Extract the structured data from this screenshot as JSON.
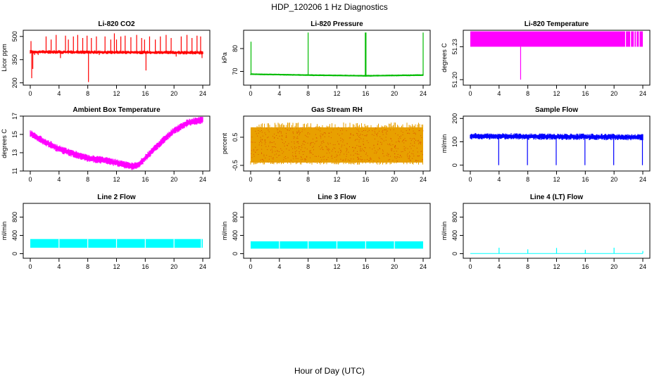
{
  "figure": {
    "title": "HDP_120206  1 Hz Diagnostics",
    "xlabel": "Hour of Day (UTC)"
  },
  "chart_data": [
    {
      "type": "line",
      "title": "Li-820 CO2",
      "ylabel": "Licor ppm",
      "xlim": [
        0,
        24
      ],
      "ylim": [
        185,
        540
      ],
      "xticks": [
        "0",
        "4",
        "8",
        "12",
        "16",
        "20",
        "24"
      ],
      "yticks": [
        "200",
        "350",
        "500"
      ],
      "ytick_values": [
        200,
        350,
        500
      ],
      "color": "#ff0000",
      "baseline": [
        [
          0,
          400
        ],
        [
          24,
          395
        ]
      ],
      "band": 12,
      "spikes": [
        [
          0.1,
          470
        ],
        [
          0.2,
          230
        ],
        [
          0.35,
          290
        ],
        [
          0.6,
          380
        ],
        [
          1.1,
          380
        ],
        [
          2.2,
          500
        ],
        [
          2.9,
          480
        ],
        [
          3.6,
          510
        ],
        [
          4.2,
          360
        ],
        [
          4.9,
          505
        ],
        [
          5.3,
          480
        ],
        [
          6.0,
          500
        ],
        [
          6.6,
          510
        ],
        [
          7.3,
          490
        ],
        [
          7.9,
          505
        ],
        [
          8.1,
          205
        ],
        [
          8.5,
          490
        ],
        [
          9.2,
          500
        ],
        [
          9.6,
          380
        ],
        [
          10.4,
          500
        ],
        [
          11.2,
          480
        ],
        [
          11.7,
          520
        ],
        [
          12.0,
          480
        ],
        [
          12.6,
          500
        ],
        [
          13.2,
          505
        ],
        [
          14.0,
          495
        ],
        [
          14.8,
          510
        ],
        [
          15.5,
          490
        ],
        [
          15.9,
          480
        ],
        [
          16.1,
          280
        ],
        [
          16.6,
          500
        ],
        [
          17.4,
          480
        ],
        [
          18.1,
          500
        ],
        [
          18.9,
          510
        ],
        [
          19.6,
          490
        ],
        [
          20.3,
          370
        ],
        [
          21.0,
          500
        ],
        [
          21.8,
          510
        ],
        [
          22.5,
          490
        ],
        [
          23.2,
          505
        ],
        [
          23.7,
          500
        ],
        [
          23.9,
          360
        ]
      ]
    },
    {
      "type": "line",
      "title": "Li-820 Pressure",
      "ylabel": "kPa",
      "xlim": [
        0,
        24
      ],
      "ylim": [
        64,
        88
      ],
      "xticks": [
        "0",
        "4",
        "8",
        "12",
        "16",
        "20",
        "24"
      ],
      "yticks": [
        "70",
        "80"
      ],
      "ytick_values": [
        70,
        80
      ],
      "color": "#00bb00",
      "baseline": [
        [
          0,
          68.8
        ],
        [
          8,
          68.4
        ],
        [
          16,
          68.1
        ],
        [
          24,
          68.4
        ]
      ],
      "band": 0.4,
      "spikes": [
        [
          0.05,
          83
        ],
        [
          8.0,
          87
        ],
        [
          15.95,
          87
        ],
        [
          16.05,
          87
        ],
        [
          24.0,
          87
        ]
      ]
    },
    {
      "type": "area",
      "title": "Li-820 Temperature",
      "ylabel": "degrees C",
      "xlim": [
        0,
        24
      ],
      "ylim": [
        51.195,
        51.245
      ],
      "xticks": [
        "0",
        "4",
        "8",
        "12",
        "16",
        "20",
        "24"
      ],
      "yticks": [
        "51.20",
        "51.23"
      ],
      "ytick_values": [
        51.2,
        51.23
      ],
      "color": "#ff00ff",
      "band_low": 51.23,
      "band_high": 51.244,
      "gaps": [
        21.6,
        22.3,
        22.8,
        23.1,
        23.5
      ],
      "spikes": [
        [
          7.0,
          51.2
        ]
      ]
    },
    {
      "type": "line",
      "title": "Ambient Box Temperature",
      "ylabel": "degrees C",
      "xlim": [
        0,
        24
      ],
      "ylim": [
        11,
        17
      ],
      "xticks": [
        "0",
        "4",
        "8",
        "12",
        "16",
        "20",
        "24"
      ],
      "yticks": [
        "11",
        "13",
        "15",
        "17"
      ],
      "ytick_values": [
        11,
        13,
        15,
        17
      ],
      "color": "#ff00ff",
      "band": 0.35,
      "x": [
        0,
        2,
        4,
        6,
        8,
        10,
        12,
        14,
        15,
        16,
        18,
        20,
        22,
        24
      ],
      "values": [
        15.1,
        14.2,
        13.4,
        12.9,
        12.4,
        12.2,
        11.9,
        11.5,
        11.6,
        12.4,
        14.0,
        15.4,
        16.3,
        16.6
      ]
    },
    {
      "type": "area",
      "title": "Gas Stream RH",
      "ylabel": "percent",
      "xlim": [
        0,
        24
      ],
      "ylim": [
        -0.7,
        1.25
      ],
      "xticks": [
        "0",
        "4",
        "8",
        "12",
        "16",
        "20",
        "24"
      ],
      "yticks": [
        "-0.5",
        "0.5"
      ],
      "ytick_values": [
        -0.5,
        0.5
      ],
      "color": "#e8a000",
      "edge_color": "#cc0000",
      "band_low": -0.4,
      "band_high": 0.85
    },
    {
      "type": "line",
      "title": "Sample Flow",
      "ylabel": "ml/min",
      "xlim": [
        0,
        24
      ],
      "ylim": [
        -25,
        210
      ],
      "xticks": [
        "0",
        "4",
        "8",
        "12",
        "16",
        "20",
        "24"
      ],
      "yticks": [
        "0",
        "100",
        "200"
      ],
      "ytick_values": [
        0,
        100,
        200
      ],
      "color": "#0000ff",
      "baseline": [
        [
          0,
          124
        ],
        [
          24,
          120
        ]
      ],
      "band": 14,
      "spikes": [
        [
          3.95,
          0
        ],
        [
          7.95,
          0
        ],
        [
          11.95,
          0
        ],
        [
          15.95,
          0
        ],
        [
          19.95,
          0
        ],
        [
          23.95,
          0
        ]
      ]
    },
    {
      "type": "area",
      "title": "Line 2 Flow",
      "ylabel": "ml/min",
      "xlim": [
        0,
        24
      ],
      "ylim": [
        -100,
        1100
      ],
      "xticks": [
        "0",
        "4",
        "8",
        "12",
        "16",
        "20",
        "24"
      ],
      "yticks": [
        "0",
        "400",
        "800"
      ],
      "ytick_values": [
        0,
        400,
        800
      ],
      "color": "#00ffff",
      "band_low": 130,
      "band_high": 320,
      "gaps": [
        4.0,
        8.0,
        12.0,
        16.0,
        20.0,
        23.8
      ]
    },
    {
      "type": "area",
      "title": "Line 3 Flow",
      "ylabel": "ml/min",
      "xlim": [
        0,
        24
      ],
      "ylim": [
        -100,
        1100
      ],
      "xticks": [
        "0",
        "4",
        "8",
        "12",
        "16",
        "20",
        "24"
      ],
      "yticks": [
        "0",
        "400",
        "800"
      ],
      "ytick_values": [
        0,
        400,
        800
      ],
      "color": "#00ffff",
      "band_low": 110,
      "band_high": 270,
      "gaps": [
        4.0,
        8.0,
        12.0,
        16.0,
        20.0
      ]
    },
    {
      "type": "line",
      "title": "Line 4 (LT) Flow",
      "ylabel": "ml/min",
      "xlim": [
        0,
        24
      ],
      "ylim": [
        -100,
        1100
      ],
      "xticks": [
        "0",
        "4",
        "8",
        "12",
        "16",
        "20",
        "24"
      ],
      "yticks": [
        "0",
        "400",
        "800"
      ],
      "ytick_values": [
        0,
        400,
        800
      ],
      "color": "#00ffff",
      "baseline": [
        [
          0,
          5
        ],
        [
          24,
          5
        ]
      ],
      "band": 0,
      "spikes": [
        [
          4.0,
          130
        ],
        [
          8.0,
          95
        ],
        [
          12.0,
          125
        ],
        [
          16.0,
          85
        ],
        [
          20.0,
          130
        ],
        [
          24.0,
          60
        ]
      ]
    }
  ]
}
